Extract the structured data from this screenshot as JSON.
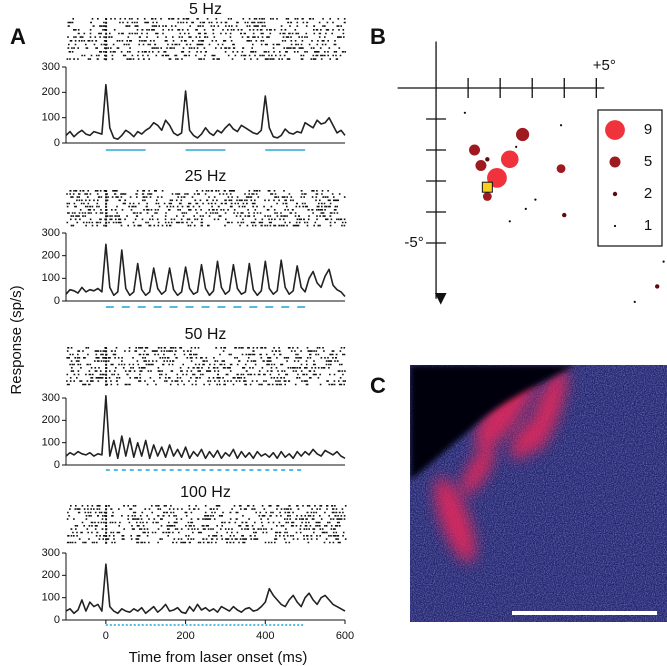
{
  "figure": {
    "panel_labels": [
      "A",
      "B",
      "C"
    ],
    "x_label": "Time from laser onset (ms)",
    "y_label": "Response (sp/s)"
  },
  "chart_data": [
    {
      "type": "line",
      "title": "5 Hz",
      "color": "#222222",
      "xlim": [
        -100,
        600
      ],
      "ylim": [
        0,
        300
      ],
      "yticks": [
        0,
        100,
        200,
        300
      ],
      "x": [
        -100,
        -90,
        -80,
        -70,
        -60,
        -50,
        -40,
        -30,
        -20,
        -10,
        0,
        10,
        20,
        30,
        40,
        50,
        60,
        70,
        80,
        90,
        100,
        110,
        120,
        130,
        140,
        150,
        160,
        170,
        180,
        190,
        200,
        210,
        220,
        230,
        240,
        250,
        260,
        270,
        280,
        290,
        300,
        310,
        320,
        330,
        340,
        350,
        360,
        370,
        380,
        390,
        400,
        410,
        420,
        430,
        440,
        450,
        460,
        470,
        480,
        490,
        500,
        510,
        520,
        530,
        540,
        550,
        560,
        570,
        580,
        590,
        600
      ],
      "values": [
        30,
        45,
        25,
        40,
        50,
        35,
        30,
        45,
        40,
        35,
        230,
        60,
        20,
        15,
        30,
        50,
        40,
        25,
        45,
        35,
        50,
        60,
        80,
        70,
        50,
        90,
        70,
        40,
        30,
        40,
        205,
        50,
        30,
        20,
        35,
        60,
        40,
        30,
        50,
        40,
        60,
        75,
        55,
        45,
        70,
        60,
        50,
        40,
        35,
        50,
        185,
        60,
        25,
        20,
        30,
        55,
        40,
        35,
        45,
        40,
        80,
        70,
        60,
        90,
        75,
        80,
        100,
        70,
        40,
        50,
        30
      ],
      "stimulus": {
        "start": 0,
        "end": 500,
        "period": 200,
        "width": 100,
        "color": "#2aa8d8"
      }
    },
    {
      "type": "line",
      "title": "25 Hz",
      "color": "#222222",
      "xlim": [
        -100,
        600
      ],
      "ylim": [
        0,
        300
      ],
      "yticks": [
        0,
        100,
        200,
        300
      ],
      "x": [
        -100,
        -90,
        -80,
        -70,
        -60,
        -50,
        -40,
        -30,
        -20,
        -10,
        0,
        10,
        20,
        30,
        40,
        50,
        60,
        70,
        80,
        90,
        100,
        110,
        120,
        130,
        140,
        150,
        160,
        170,
        180,
        190,
        200,
        210,
        220,
        230,
        240,
        250,
        260,
        270,
        280,
        290,
        300,
        310,
        320,
        330,
        340,
        350,
        360,
        370,
        380,
        390,
        400,
        410,
        420,
        430,
        440,
        450,
        460,
        470,
        480,
        490,
        500,
        510,
        520,
        530,
        540,
        550,
        560,
        570,
        580,
        590,
        600
      ],
      "values": [
        30,
        50,
        45,
        35,
        60,
        40,
        50,
        45,
        55,
        40,
        250,
        60,
        25,
        40,
        225,
        55,
        25,
        40,
        165,
        50,
        25,
        40,
        145,
        55,
        30,
        45,
        145,
        50,
        25,
        40,
        150,
        55,
        30,
        40,
        160,
        55,
        25,
        45,
        175,
        60,
        30,
        45,
        160,
        55,
        30,
        40,
        165,
        50,
        25,
        45,
        175,
        55,
        30,
        45,
        180,
        60,
        30,
        45,
        155,
        60,
        40,
        100,
        130,
        80,
        60,
        110,
        140,
        70,
        50,
        40,
        20
      ],
      "stimulus": {
        "start": 0,
        "end": 500,
        "period": 40,
        "width": 20,
        "color": "#2aa8d8"
      }
    },
    {
      "type": "line",
      "title": "50 Hz",
      "color": "#222222",
      "xlim": [
        -100,
        600
      ],
      "ylim": [
        0,
        300
      ],
      "yticks": [
        0,
        100,
        200,
        300
      ],
      "x": [
        -100,
        -90,
        -80,
        -70,
        -60,
        -50,
        -40,
        -30,
        -20,
        -10,
        0,
        10,
        20,
        30,
        40,
        50,
        60,
        70,
        80,
        90,
        100,
        110,
        120,
        130,
        140,
        150,
        160,
        170,
        180,
        190,
        200,
        210,
        220,
        230,
        240,
        250,
        260,
        270,
        280,
        290,
        300,
        310,
        320,
        330,
        340,
        350,
        360,
        370,
        380,
        390,
        400,
        410,
        420,
        430,
        440,
        450,
        460,
        470,
        480,
        490,
        500,
        510,
        520,
        530,
        540,
        550,
        560,
        570,
        580,
        590,
        600
      ],
      "values": [
        40,
        55,
        45,
        60,
        50,
        45,
        55,
        40,
        50,
        45,
        310,
        40,
        110,
        30,
        130,
        40,
        120,
        35,
        100,
        40,
        110,
        30,
        90,
        40,
        80,
        35,
        90,
        40,
        70,
        35,
        80,
        30,
        60,
        40,
        70,
        30,
        60,
        35,
        65,
        30,
        55,
        40,
        70,
        30,
        60,
        35,
        55,
        30,
        60,
        40,
        50,
        35,
        55,
        30,
        60,
        35,
        50,
        30,
        60,
        40,
        60,
        45,
        70,
        50,
        40,
        65,
        55,
        45,
        60,
        40,
        30
      ],
      "stimulus": {
        "start": 0,
        "end": 500,
        "period": 20,
        "width": 10,
        "color": "#2aa8d8"
      }
    },
    {
      "type": "line",
      "title": "100 Hz",
      "color": "#222222",
      "xlim": [
        -100,
        600
      ],
      "ylim": [
        0,
        300
      ],
      "yticks": [
        0,
        100,
        200,
        300
      ],
      "xticks": [
        0,
        200,
        400,
        600
      ],
      "x": [
        -100,
        -90,
        -80,
        -70,
        -60,
        -50,
        -40,
        -30,
        -20,
        -10,
        0,
        10,
        20,
        30,
        40,
        50,
        60,
        70,
        80,
        90,
        100,
        110,
        120,
        130,
        140,
        150,
        160,
        170,
        180,
        190,
        200,
        210,
        220,
        230,
        240,
        250,
        260,
        270,
        280,
        290,
        300,
        310,
        320,
        330,
        340,
        350,
        360,
        370,
        380,
        390,
        400,
        410,
        420,
        430,
        440,
        450,
        460,
        470,
        480,
        490,
        500,
        510,
        520,
        530,
        540,
        550,
        560,
        570,
        580,
        590,
        600
      ],
      "values": [
        40,
        50,
        30,
        45,
        90,
        40,
        80,
        60,
        70,
        40,
        250,
        60,
        40,
        30,
        50,
        40,
        35,
        50,
        40,
        55,
        30,
        45,
        60,
        35,
        50,
        70,
        40,
        45,
        55,
        35,
        30,
        60,
        40,
        70,
        45,
        55,
        40,
        50,
        35,
        60,
        50,
        40,
        60,
        45,
        35,
        50,
        55,
        40,
        45,
        60,
        80,
        140,
        110,
        90,
        70,
        60,
        90,
        110,
        80,
        60,
        100,
        120,
        90,
        70,
        100,
        110,
        90,
        70,
        60,
        50,
        40
      ],
      "stimulus": {
        "start": 0,
        "end": 500,
        "period": 10,
        "width": 5,
        "color": "#2aa8d8"
      }
    },
    {
      "type": "bubble",
      "xlim": [
        -1.2,
        7.0
      ],
      "ylim": [
        -6.8,
        1.5
      ],
      "xticks": [
        1,
        2,
        3,
        4,
        {
          "value": 5,
          "label": "+5°"
        }
      ],
      "yticks": [
        -1,
        -2,
        -3,
        -4,
        {
          "value": -5,
          "label": "-5°"
        }
      ],
      "x": [
        0.9,
        2.7,
        1.2,
        1.6,
        2.3,
        2.5,
        1.9,
        1.4,
        1.6,
        2.3,
        2.8,
        3.1,
        3.9,
        3.9,
        4.0,
        7.1,
        6.9,
        6.2
      ],
      "y": [
        -0.8,
        -1.5,
        -2.0,
        -2.3,
        -2.3,
        -1.9,
        -2.9,
        -2.5,
        -3.5,
        -4.3,
        -3.9,
        -3.6,
        -1.2,
        -2.6,
        -4.1,
        -5.6,
        -6.4,
        -6.9
      ],
      "sizes": [
        1,
        6,
        5,
        2,
        8,
        1,
        9,
        5,
        4,
        1,
        1,
        1,
        1,
        4,
        2,
        1,
        2,
        1
      ],
      "legend": [
        {
          "value": 9,
          "color": "#f0323c"
        },
        {
          "value": 5,
          "color": "#9e1a20"
        },
        {
          "value": 2,
          "color": "#5a0c10"
        },
        {
          "value": 1,
          "color": "#1a0606"
        }
      ],
      "site": {
        "x": 1.6,
        "y": -3.2,
        "color": "#f5d020"
      }
    }
  ]
}
